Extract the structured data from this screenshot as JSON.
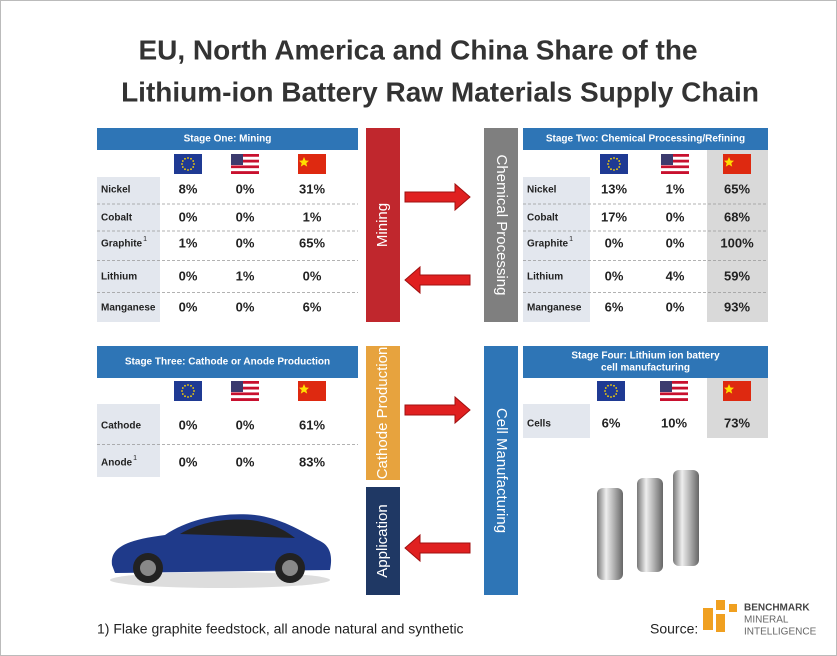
{
  "title": [
    "EU, North America and China Share of the",
    "Lithium-ion Battery Raw Materials Supply Chain"
  ],
  "tables": [
    {
      "title": [
        "Stage One: Mining"
      ],
      "rows": [
        {
          "label": "Nickel",
          "values": [
            "8%",
            "0%",
            "31%"
          ]
        },
        {
          "label": "Cobalt",
          "values": [
            "0%",
            "0%",
            "1%"
          ]
        },
        {
          "label": "Graphite",
          "note": "1",
          "values": [
            "1%",
            "0%",
            "65%"
          ]
        },
        {
          "label": "Lithium",
          "values": [
            "0%",
            "1%",
            "0%"
          ]
        },
        {
          "label": "Manganese",
          "values": [
            "0%",
            "0%",
            "6%"
          ]
        }
      ]
    },
    {
      "title": [
        "Stage Two: Chemical Processing/Refining"
      ],
      "rows": [
        {
          "label": "Nickel",
          "values": [
            "13%",
            "1%",
            "65%"
          ]
        },
        {
          "label": "Cobalt",
          "values": [
            "17%",
            "0%",
            "68%"
          ]
        },
        {
          "label": "Graphite",
          "note": "1",
          "values": [
            "0%",
            "0%",
            "100%"
          ]
        },
        {
          "label": "Lithium",
          "values": [
            "0%",
            "4%",
            "59%"
          ]
        },
        {
          "label": "Manganese",
          "values": [
            "6%",
            "0%",
            "93%"
          ]
        }
      ]
    },
    {
      "title": [
        "Stage Three: Cathode or Anode Production"
      ],
      "rows": [
        {
          "label": "Cathode",
          "values": [
            "0%",
            "0%",
            "61%"
          ]
        },
        {
          "label": "Anode",
          "note": "1",
          "values": [
            "0%",
            "0%",
            "83%"
          ]
        }
      ]
    },
    {
      "title": [
        "Stage Four: Lithium ion battery",
        "cell manufacturing"
      ],
      "rows": [
        {
          "label": "Cells",
          "values": [
            "6%",
            "10%",
            "73%"
          ]
        }
      ]
    }
  ],
  "stages": [
    "Mining",
    "Chemical Processing",
    "Cathode Production",
    "Cell Manufacturing",
    "Application"
  ],
  "footnote": "1) Flake graphite feedstock, all anode natural and synthetic",
  "source": "Source:",
  "logo": [
    "BENCHMARK",
    "MINERAL",
    "INTELLIGENCE"
  ]
}
